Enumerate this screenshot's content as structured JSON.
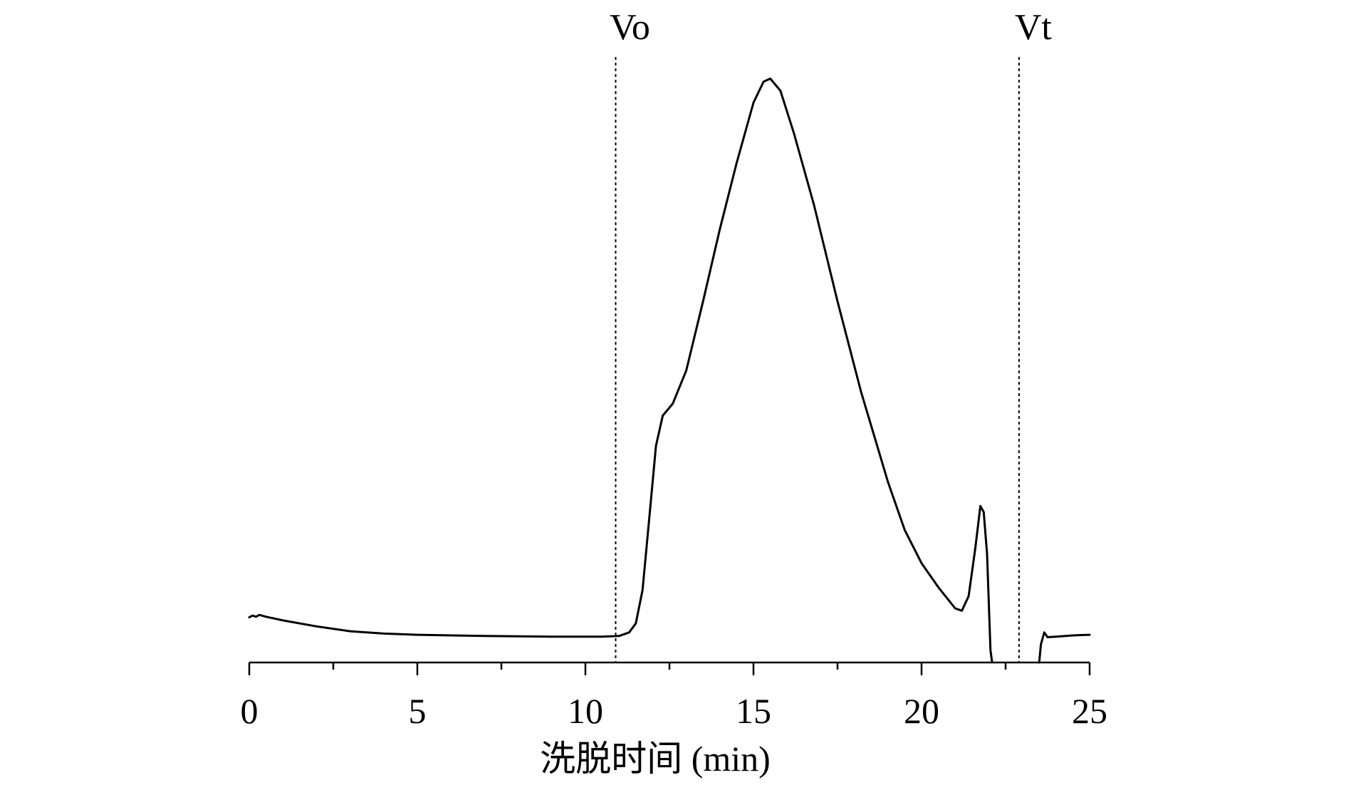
{
  "chart_data": {
    "type": "line",
    "title": "",
    "xlabel": "洗脱时间 (min)",
    "ylabel": "",
    "xlim": [
      0,
      25
    ],
    "ylim": [
      0,
      100
    ],
    "x_major_ticks": [
      0,
      5,
      10,
      15,
      20,
      25
    ],
    "x_tick_labels": [
      "0",
      "5",
      "10",
      "15",
      "20",
      "25"
    ],
    "x_minor_ticks": [
      2.5,
      7.5,
      12.5,
      17.5,
      22.5
    ],
    "grid": false,
    "legend": "none",
    "line_color": "#000000",
    "markers": [
      {
        "label": "Vo",
        "x": 10.9,
        "style": "dotted"
      },
      {
        "label": "Vt",
        "x": 22.9,
        "style": "dotted"
      }
    ],
    "series": [
      {
        "points": [
          [
            0.0,
            7.5
          ],
          [
            0.1,
            7.8
          ],
          [
            0.2,
            7.6
          ],
          [
            0.3,
            7.9
          ],
          [
            0.5,
            7.6
          ],
          [
            1.0,
            7.0
          ],
          [
            2.0,
            6.0
          ],
          [
            3.0,
            5.2
          ],
          [
            4.0,
            4.8
          ],
          [
            5.0,
            4.6
          ],
          [
            7.0,
            4.4
          ],
          [
            9.0,
            4.3
          ],
          [
            10.5,
            4.3
          ],
          [
            11.0,
            4.4
          ],
          [
            11.3,
            5.0
          ],
          [
            11.5,
            6.5
          ],
          [
            11.7,
            12.0
          ],
          [
            11.9,
            24.0
          ],
          [
            12.1,
            36.0
          ],
          [
            12.3,
            41.0
          ],
          [
            12.6,
            43.0
          ],
          [
            13.0,
            48.5
          ],
          [
            13.5,
            60.0
          ],
          [
            14.0,
            72.0
          ],
          [
            14.5,
            83.0
          ],
          [
            15.0,
            93.0
          ],
          [
            15.3,
            96.5
          ],
          [
            15.5,
            97.0
          ],
          [
            15.8,
            95.0
          ],
          [
            16.2,
            88.0
          ],
          [
            16.8,
            76.0
          ],
          [
            17.5,
            60.0
          ],
          [
            18.2,
            45.0
          ],
          [
            19.0,
            30.0
          ],
          [
            19.5,
            22.0
          ],
          [
            20.0,
            16.5
          ],
          [
            20.5,
            12.5
          ],
          [
            21.0,
            9.0
          ],
          [
            21.2,
            8.6
          ],
          [
            21.4,
            11.0
          ],
          [
            21.6,
            19.0
          ],
          [
            21.75,
            26.0
          ],
          [
            21.85,
            25.0
          ],
          [
            21.95,
            18.0
          ],
          [
            22.05,
            2.0
          ],
          [
            22.1,
            0.0
          ]
        ]
      },
      {
        "points": [
          [
            23.5,
            0.0
          ],
          [
            23.55,
            3.0
          ],
          [
            23.65,
            5.0
          ],
          [
            23.75,
            4.2
          ],
          [
            24.0,
            4.3
          ],
          [
            24.5,
            4.5
          ],
          [
            25.0,
            4.6
          ]
        ]
      }
    ]
  }
}
